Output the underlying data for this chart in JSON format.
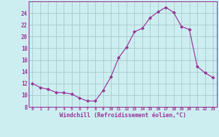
{
  "x": [
    0,
    1,
    2,
    3,
    4,
    5,
    6,
    7,
    8,
    9,
    10,
    11,
    12,
    13,
    14,
    15,
    16,
    17,
    18,
    19,
    20,
    21,
    22,
    23
  ],
  "y": [
    12,
    11.3,
    11.0,
    10.5,
    10.4,
    10.2,
    9.5,
    9.0,
    9.0,
    10.8,
    13.1,
    16.4,
    18.2,
    20.8,
    21.4,
    23.2,
    24.2,
    25.0,
    24.1,
    21.7,
    21.2,
    14.9,
    13.8,
    13.0
  ],
  "line_color": "#993399",
  "marker": "D",
  "marker_size": 2.2,
  "bg_color": "#cdeef0",
  "grid_color": "#aacccc",
  "xlabel": "Windchill (Refroidissement éolien,°C)",
  "xlabel_color": "#993399",
  "tick_color": "#993399",
  "ylim": [
    8,
    26
  ],
  "xlim": [
    -0.5,
    23.5
  ],
  "yticks": [
    8,
    10,
    12,
    14,
    16,
    18,
    20,
    22,
    24
  ],
  "xticks": [
    0,
    1,
    2,
    3,
    4,
    5,
    6,
    7,
    8,
    9,
    10,
    11,
    12,
    13,
    14,
    15,
    16,
    17,
    18,
    19,
    20,
    21,
    22,
    23
  ],
  "axis_color": "#993399",
  "spine_color": "#993399"
}
